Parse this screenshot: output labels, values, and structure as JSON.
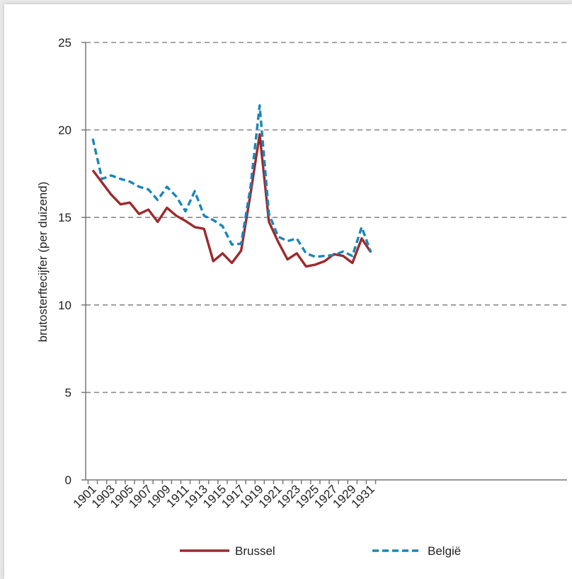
{
  "chart_data": {
    "type": "line",
    "title": "",
    "xlabel": "",
    "ylabel": "brutosterftecijfer (per duizend)",
    "ylim": [
      0,
      25
    ],
    "yticks": [
      "0",
      "5",
      "10",
      "15",
      "20",
      "25"
    ],
    "grid": true,
    "legend_position": "bottom",
    "x": [
      1901,
      1902,
      1903,
      1904,
      1905,
      1906,
      1907,
      1908,
      1909,
      1910,
      1911,
      1912,
      1913,
      1914,
      1915,
      1916,
      1917,
      1918,
      1919,
      1920,
      1921,
      1922,
      1923,
      1924,
      1925,
      1926,
      1927,
      1928,
      1929,
      1930,
      1931
    ],
    "xtick_labels": [
      "1901",
      "1903",
      "1905",
      "1907",
      "1909",
      "1911",
      "1913",
      "1915",
      "1917",
      "1919",
      "1921",
      "1923",
      "1925",
      "1927",
      "1929",
      "1931"
    ],
    "series": [
      {
        "name": "Brussel",
        "color": "#9b2a2d",
        "dash": "solid",
        "values": [
          17.7,
          17.0,
          16.3,
          15.75,
          15.85,
          15.2,
          15.45,
          14.75,
          15.55,
          15.1,
          14.8,
          14.45,
          14.35,
          12.5,
          12.95,
          12.4,
          13.1,
          16.3,
          19.75,
          14.75,
          13.6,
          12.6,
          12.95,
          12.2,
          12.3,
          12.5,
          12.9,
          12.8,
          12.4,
          13.8,
          13.0
        ]
      },
      {
        "name": "België",
        "color": "#1a85b8",
        "dash": "dashed",
        "values": [
          19.5,
          17.2,
          17.4,
          17.2,
          17.05,
          16.75,
          16.6,
          16.0,
          16.75,
          16.2,
          15.35,
          16.5,
          15.1,
          14.85,
          14.5,
          13.45,
          13.5,
          16.7,
          21.4,
          15.2,
          13.9,
          13.65,
          13.8,
          12.95,
          12.75,
          12.8,
          12.85,
          13.05,
          12.8,
          14.45,
          13.0
        ]
      }
    ]
  }
}
